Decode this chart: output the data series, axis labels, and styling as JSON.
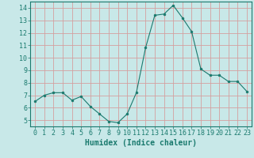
{
  "x": [
    0,
    1,
    2,
    3,
    4,
    5,
    6,
    7,
    8,
    9,
    10,
    11,
    12,
    13,
    14,
    15,
    16,
    17,
    18,
    19,
    20,
    21,
    22,
    23
  ],
  "y": [
    6.5,
    7.0,
    7.2,
    7.2,
    6.6,
    6.9,
    6.1,
    5.5,
    4.9,
    4.8,
    5.5,
    7.2,
    10.8,
    13.4,
    13.5,
    14.2,
    13.2,
    12.1,
    9.1,
    8.6,
    8.6,
    8.1,
    8.1,
    7.3
  ],
  "line_color": "#1a7a6e",
  "bg_color": "#c8e8e8",
  "grid_color": "#d4a0a0",
  "xlabel": "Humidex (Indice chaleur)",
  "xlim": [
    -0.5,
    23.5
  ],
  "ylim": [
    4.5,
    14.5
  ],
  "yticks": [
    5,
    6,
    7,
    8,
    9,
    10,
    11,
    12,
    13,
    14
  ],
  "xticks": [
    0,
    1,
    2,
    3,
    4,
    5,
    6,
    7,
    8,
    9,
    10,
    11,
    12,
    13,
    14,
    15,
    16,
    17,
    18,
    19,
    20,
    21,
    22,
    23
  ],
  "tick_color": "#1a7a6e",
  "label_color": "#1a7a6e",
  "font_size": 6,
  "xlabel_font_size": 7
}
